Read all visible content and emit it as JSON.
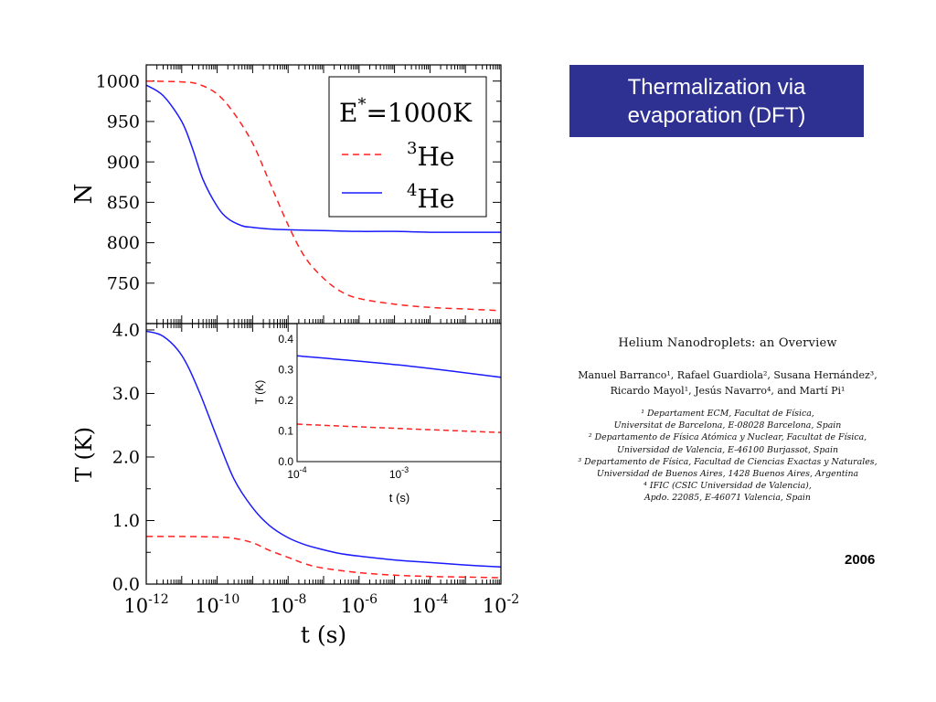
{
  "banner": {
    "line1": "Thermalization via",
    "line2": "evaporation (DFT)"
  },
  "paper": {
    "title": "Helium Nanodroplets: an Overview",
    "authors_line1": "Manuel Barranco¹, Rafael Guardiola², Susana Hernández³,",
    "authors_line2": "Ricardo Mayol¹, Jesús Navarro⁴, and Martí Pi¹",
    "affiliations": [
      "¹ Departament ECM, Facultat de Física,",
      "Universitat de Barcelona, E-08028 Barcelona, Spain",
      "² Departamento de Física Atómica y Nuclear, Facultat de Física,",
      "Universidad de Valencia, E-46100 Burjassot, Spain",
      "³ Departamento de Física, Facultad de Ciencias Exactas y Naturales,",
      "Universidad de Buenos Aires, 1428 Buenos Aires, Argentina",
      "⁴ IFIC (CSIC Universidad de Valencia),",
      "Apdo. 22085, E-46071 Valencia, Spain"
    ]
  },
  "year": "2006",
  "colors": {
    "banner_bg": "#2e3192",
    "he3": "#ff2020",
    "he4": "#1a1aff"
  },
  "chart_data": [
    {
      "id": "top",
      "type": "line",
      "xscale": "log",
      "xlim": [
        1e-12,
        0.01
      ],
      "ylim": [
        700,
        1020
      ],
      "ylabel": "N",
      "yticks": [
        750,
        800,
        850,
        900,
        950,
        1000
      ],
      "ytick_labels": [
        "750",
        "800",
        "850",
        "900",
        "950",
        "1000"
      ],
      "legend": {
        "title_base": "E",
        "title_sup": "*",
        "title_rest": "=1000K",
        "placement": "top-right"
      },
      "series": [
        {
          "name_sup": "3",
          "name_base": "He",
          "style": "dashed",
          "color": "#ff2020",
          "x": [
            1e-12,
            1e-11,
            3e-11,
            1e-10,
            3e-10,
            1e-09,
            3e-09,
            1e-08,
            3e-08,
            1e-07,
            3e-07,
            1e-06,
            1e-05,
            0.0001,
            0.001,
            0.01
          ],
          "y": [
            1000,
            999,
            996,
            984,
            960,
            923,
            875,
            822,
            782,
            756,
            740,
            731,
            724,
            720,
            718,
            716
          ]
        },
        {
          "name_sup": "4",
          "name_base": "He",
          "style": "solid",
          "color": "#1a1aff",
          "x": [
            1e-12,
            3e-12,
            1e-11,
            2e-11,
            4e-11,
            1e-10,
            2e-10,
            5e-10,
            1e-09,
            3e-09,
            1e-08,
            1e-07,
            1e-06,
            1e-05,
            0.0001,
            0.001,
            0.01
          ],
          "y": [
            995,
            982,
            950,
            917,
            878,
            845,
            830,
            821,
            819,
            817,
            816,
            815,
            814,
            814,
            813,
            813,
            813
          ]
        }
      ]
    },
    {
      "id": "bottom",
      "type": "line",
      "xscale": "log",
      "xlim": [
        1e-12,
        0.01
      ],
      "ylim": [
        0.0,
        4.1
      ],
      "xlabel": "t (s)",
      "ylabel": "T (K)",
      "yticks": [
        0.0,
        1.0,
        2.0,
        3.0,
        4.0
      ],
      "ytick_labels": [
        "0.0",
        "1.0",
        "2.0",
        "3.0",
        "4.0"
      ],
      "xticks": [
        1e-12,
        1e-10,
        1e-08,
        1e-06,
        0.0001,
        0.01
      ],
      "xtick_bases": [
        "10",
        "10",
        "10",
        "10",
        "10",
        "10"
      ],
      "xtick_exps": [
        "-12",
        "-10",
        "-8",
        "-6",
        "-4",
        "-2"
      ],
      "series": [
        {
          "style": "solid",
          "color": "#1a1aff",
          "x": [
            1e-12,
            3e-12,
            1e-11,
            3e-11,
            1e-10,
            3e-10,
            1e-09,
            3e-09,
            1e-08,
            3e-08,
            1e-07,
            3e-07,
            1e-06,
            1e-05,
            0.0001,
            0.001,
            0.01
          ],
          "y": [
            3.98,
            3.9,
            3.6,
            3.05,
            2.3,
            1.65,
            1.2,
            0.92,
            0.73,
            0.62,
            0.54,
            0.48,
            0.44,
            0.38,
            0.34,
            0.3,
            0.27
          ]
        },
        {
          "style": "dashed",
          "color": "#ff2020",
          "x": [
            1e-12,
            1e-11,
            1e-10,
            3e-10,
            1e-09,
            3e-09,
            1e-08,
            3e-08,
            1e-07,
            1e-06,
            1e-05,
            0.0001,
            0.001,
            0.01
          ],
          "y": [
            0.75,
            0.75,
            0.74,
            0.72,
            0.65,
            0.53,
            0.42,
            0.32,
            0.25,
            0.18,
            0.14,
            0.12,
            0.11,
            0.1
          ]
        }
      ]
    },
    {
      "id": "inset",
      "type": "line",
      "xscale": "log",
      "xlim": [
        0.0001,
        0.01
      ],
      "ylim": [
        0.0,
        0.45
      ],
      "xlabel": "t (s)",
      "ylabel": "T (K)",
      "yticks": [
        0.0,
        0.1,
        0.2,
        0.3,
        0.4
      ],
      "ytick_labels": [
        "0.0",
        "0.1",
        "0.2",
        "0.3",
        "0.4"
      ],
      "xticks": [
        0.0001,
        0.001
      ],
      "xtick_bases": [
        "10",
        "10"
      ],
      "xtick_exps": [
        "-4",
        "-3"
      ],
      "series": [
        {
          "style": "solid",
          "color": "#1a1aff",
          "x": [
            0.0001,
            0.001,
            0.01
          ],
          "y": [
            0.345,
            0.315,
            0.275
          ]
        },
        {
          "style": "dashed",
          "color": "#ff2020",
          "x": [
            0.0001,
            0.001,
            0.01
          ],
          "y": [
            0.122,
            0.108,
            0.095
          ]
        }
      ]
    }
  ]
}
